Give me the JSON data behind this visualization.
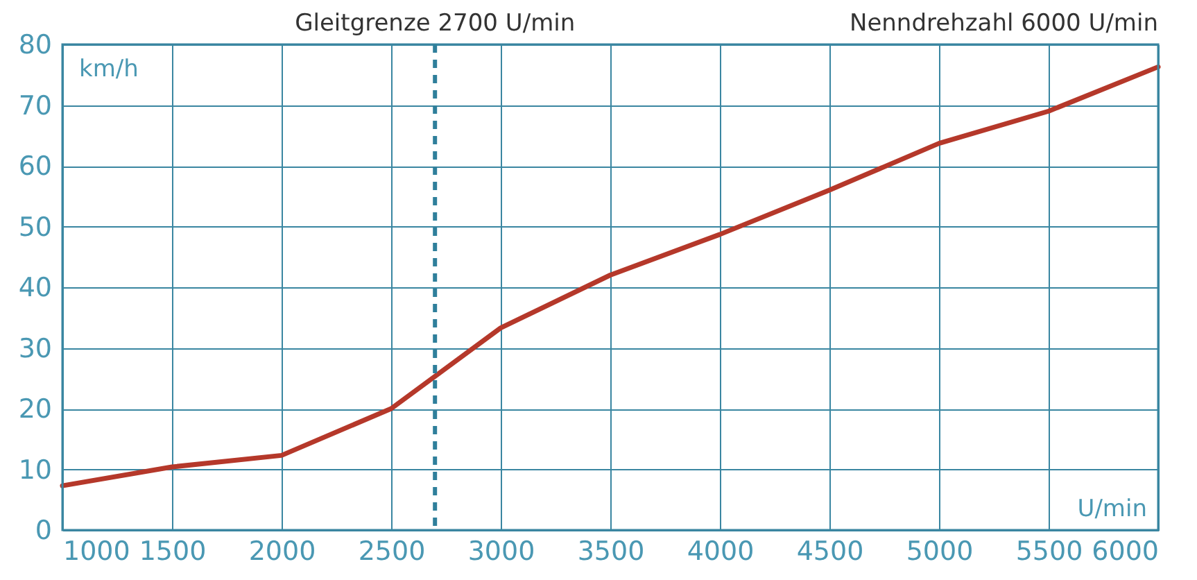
{
  "chart_data": {
    "type": "line",
    "xlabel": "U/min",
    "ylabel": "km/h",
    "x": [
      1000,
      1500,
      2000,
      2500,
      3000,
      3500,
      4000,
      4500,
      5000,
      5500,
      6000
    ],
    "series": [
      {
        "color": "#b5382a",
        "values": [
          7.3,
          10.4,
          12.3,
          20,
          33.3,
          42,
          48.7,
          56,
          63.7,
          69,
          76.3
        ]
      }
    ],
    "xlim": [
      1000,
      6000
    ],
    "ylim": [
      0,
      80
    ],
    "xticks": [
      1000,
      1500,
      2000,
      2500,
      3000,
      3500,
      4000,
      4500,
      5000,
      5500,
      6000
    ],
    "yticks": [
      0,
      10,
      20,
      30,
      40,
      50,
      60,
      70,
      80
    ],
    "ref_lines": [
      {
        "axis": "x",
        "value": 2700,
        "label": "Gleitgrenze 2700 U/min",
        "color": "#2f7f9b",
        "line_style": "dashed"
      }
    ],
    "annotations": [
      "Nenndrehzahl 6000 U/min"
    ],
    "grid": true,
    "marker": "none",
    "line_style": "solid"
  }
}
